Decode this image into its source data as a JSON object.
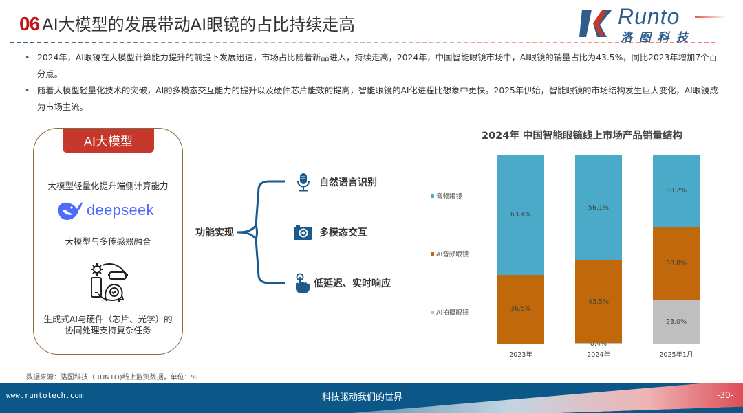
{
  "header": {
    "section_number": "06",
    "title": "AI大模型的发展带动AI眼镜的占比持续走高"
  },
  "logo": {
    "wordmark": "Runto",
    "chinese_name": "洛图科技",
    "colors": {
      "blue": "#2f5d8c",
      "red": "#c6382b"
    }
  },
  "bullets": [
    "2024年，AI眼镜在大模型计算能力提升的前提下发展迅速，市场占比随着新品进入，持续走高，2024年，中国智能眼镜市场中，AI眼镜的销量占比为43.5%，同比2023年增加7个百分点。",
    "随着大模型轻量化技术的突破，AI的多模态交互能力的提升以及硬件芯片能效的提高，智能眼镜的AI化进程比想象中更快。2025年伊始，智能眼镜的市场结构发生巨大变化，AI眼镜成为市场主流。"
  ],
  "card": {
    "badge": "AI大模型",
    "item1": "大模型轻量化提升端侧计算能力",
    "deepseek_label": "deepseek",
    "item2": "大模型与多传感器融合",
    "item3": "生成式AI与硬件（芯片、光学）的协同处理支持复杂任务"
  },
  "mindmap": {
    "root": "功能实现",
    "branches": [
      {
        "label": "自然语言识别",
        "icon": "microphone-icon"
      },
      {
        "label": "多模态交互",
        "icon": "camera-icon"
      },
      {
        "label": "低延迟、实时响应",
        "icon": "touch-hand-icon"
      }
    ],
    "color": "#1b5a8a"
  },
  "chart_data": {
    "type": "bar",
    "stacked": true,
    "percent_stacked": true,
    "title": "2024年  中国智能眼镜线上市场产品销量结构",
    "categories": [
      "2023年",
      "2024年",
      "2025年1月"
    ],
    "series": [
      {
        "name": "AI拍摄眼镜",
        "color": "#bfbfbf",
        "values": [
          0.0,
          0.4,
          23.0
        ],
        "labels": [
          "",
          "0.4%",
          "23.0%"
        ]
      },
      {
        "name": "AI音频眼镜",
        "color": "#c0680a",
        "values": [
          36.5,
          43.5,
          38.8
        ],
        "labels": [
          "36.5%",
          "43.5%",
          "38.8%"
        ]
      },
      {
        "name": "音频眼镜",
        "color": "#4aaac8",
        "values": [
          63.4,
          56.1,
          38.2
        ],
        "labels": [
          "63.4%",
          "56.1%",
          "38.2%"
        ]
      }
    ],
    "legend": [
      "音频眼镜",
      "AI音频眼镜",
      "AI拍摄眼镜"
    ],
    "legend_position": "left",
    "xlabel": "",
    "ylabel": "",
    "ylim": [
      0,
      100
    ],
    "grid": false
  },
  "source_note": "数据来源：洛图科技（RUNTO)线上监测数据，单位：%",
  "footer": {
    "url": "www.runtotech.com",
    "slogan": "科技驱动我们的世界",
    "page": "-30-"
  }
}
